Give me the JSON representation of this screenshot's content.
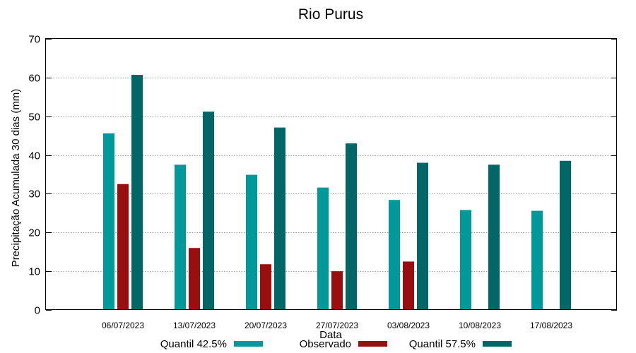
{
  "chart_data": {
    "type": "bar",
    "title": "Rio Purus",
    "xlabel": "Data",
    "ylabel": "Precipitação Acumulada 30 dias (mm)",
    "ylim": [
      0,
      70
    ],
    "yticks": [
      0,
      10,
      20,
      30,
      40,
      50,
      60,
      70
    ],
    "grid": true,
    "legend_position": "bottom",
    "categories": [
      "06/07/2023",
      "13/07/2023",
      "20/07/2023",
      "27/07/2023",
      "03/08/2023",
      "10/08/2023",
      "17/08/2023"
    ],
    "series": [
      {
        "name": "Quantil 42.5%",
        "color": "#009999",
        "values": [
          45.6,
          37.5,
          34.9,
          31.6,
          28.4,
          25.8,
          25.6
        ]
      },
      {
        "name": "Observado",
        "color": "#990f0f",
        "values": [
          32.5,
          16.0,
          11.8,
          10.0,
          12.5,
          null,
          null
        ]
      },
      {
        "name": "Quantil 57.5%",
        "color": "#006666",
        "values": [
          60.7,
          51.2,
          47.1,
          43.0,
          38.0,
          37.5,
          38.5
        ]
      }
    ]
  }
}
